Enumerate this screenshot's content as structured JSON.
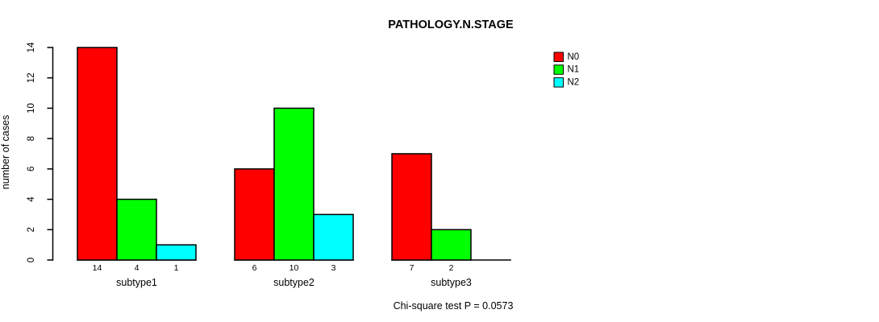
{
  "chart_data": {
    "type": "bar",
    "title": "PATHOLOGY.N.STAGE",
    "ylabel": "number of cases",
    "xlabel": "",
    "footnote": "Chi-square test P = 0.0573",
    "categories": [
      "subtype1",
      "subtype2",
      "subtype3"
    ],
    "series": [
      {
        "name": "N0",
        "color": "#ff0000",
        "values": [
          14,
          6,
          7
        ]
      },
      {
        "name": "N1",
        "color": "#00ff00",
        "values": [
          4,
          10,
          2
        ]
      },
      {
        "name": "N2",
        "color": "#00ffff",
        "values": [
          1,
          3,
          0
        ]
      }
    ],
    "ylim": [
      0,
      14
    ],
    "yticks": [
      0,
      2,
      4,
      6,
      8,
      10,
      12,
      14
    ],
    "grid": false,
    "legend_position": "top-right",
    "show_value_labels": true,
    "hide_zero_value_labels": true,
    "axis_color": "#000000",
    "bar_border_color": "#000000",
    "background": "#ffffff"
  }
}
